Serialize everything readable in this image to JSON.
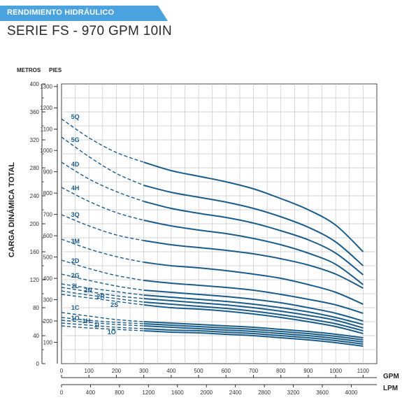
{
  "header": {
    "banner": "RENDIMIENTO HIDRÁULICO",
    "title": "SERIE FS - 970 GPM 10IN",
    "banner_color": "#4aa3df"
  },
  "chart_data": {
    "type": "line",
    "title": "SERIE FS - 970 GPM 10IN",
    "ylabel": "CARGA DINÁMICA TOTAL",
    "y_left_unit": "METROS",
    "y_right_unit": "PIES",
    "x_unit_gpm": "GPM",
    "x_unit_lpm": "LPM",
    "xlim": [
      0,
      1150
    ],
    "ylim": [
      0,
      400
    ],
    "metros_ticks": [
      "0",
      "40",
      "80",
      "120",
      "160",
      "200",
      "240",
      "280",
      "320",
      "360",
      "400"
    ],
    "pies_ticks": [
      "100",
      "200",
      "300",
      "400",
      "500",
      "600",
      "700",
      "800",
      "900",
      "1000",
      "1100",
      "1200",
      "1300"
    ],
    "gpm_ticks": [
      "0",
      "100",
      "200",
      "300",
      "400",
      "500",
      "600",
      "700",
      "800",
      "900",
      "1000",
      "1100"
    ],
    "lpm_ticks": [
      "0",
      "400",
      "800",
      "1200",
      "1600",
      "2000",
      "2400",
      "2800",
      "3200",
      "3600",
      "4000"
    ],
    "grid": true,
    "line_color": "#1a5c8a",
    "series": [
      {
        "name": "5Q",
        "lx": 50,
        "ly": 350,
        "points": [
          [
            0,
            350
          ],
          [
            100,
            323
          ],
          [
            200,
            302
          ],
          [
            300,
            288
          ],
          [
            400,
            276
          ],
          [
            500,
            268
          ],
          [
            600,
            260
          ],
          [
            700,
            250
          ],
          [
            800,
            236
          ],
          [
            900,
            220
          ],
          [
            1000,
            198
          ],
          [
            1100,
            160
          ]
        ]
      },
      {
        "name": "5G",
        "lx": 50,
        "ly": 317,
        "points": [
          [
            0,
            324
          ],
          [
            100,
            296
          ],
          [
            200,
            272
          ],
          [
            300,
            255
          ],
          [
            400,
            245
          ],
          [
            500,
            238
          ],
          [
            600,
            231
          ],
          [
            700,
            222
          ],
          [
            800,
            210
          ],
          [
            900,
            195
          ],
          [
            1000,
            174
          ],
          [
            1100,
            140
          ]
        ]
      },
      {
        "name": "4D",
        "lx": 50,
        "ly": 282,
        "points": [
          [
            0,
            288
          ],
          [
            100,
            264
          ],
          [
            200,
            246
          ],
          [
            300,
            232
          ],
          [
            400,
            222
          ],
          [
            500,
            215
          ],
          [
            600,
            209
          ],
          [
            700,
            201
          ],
          [
            800,
            190
          ],
          [
            900,
            177
          ],
          [
            1000,
            158
          ],
          [
            1100,
            127
          ]
        ]
      },
      {
        "name": "4H",
        "lx": 50,
        "ly": 248,
        "points": [
          [
            0,
            252
          ],
          [
            100,
            232
          ],
          [
            200,
            216
          ],
          [
            300,
            205
          ],
          [
            400,
            197
          ],
          [
            500,
            191
          ],
          [
            600,
            186
          ],
          [
            700,
            179
          ],
          [
            800,
            170
          ],
          [
            900,
            158
          ],
          [
            1000,
            142
          ],
          [
            1100,
            113
          ]
        ]
      },
      {
        "name": "3Q",
        "lx": 50,
        "ly": 210,
        "points": [
          [
            0,
            213
          ],
          [
            100,
            197
          ],
          [
            200,
            184
          ],
          [
            300,
            176
          ],
          [
            400,
            170
          ],
          [
            500,
            166
          ],
          [
            600,
            162
          ],
          [
            700,
            157
          ],
          [
            800,
            150
          ],
          [
            900,
            141
          ],
          [
            1000,
            128
          ],
          [
            1100,
            108
          ]
        ]
      },
      {
        "name": "3M",
        "lx": 50,
        "ly": 172,
        "points": [
          [
            0,
            178
          ],
          [
            100,
            164
          ],
          [
            200,
            153
          ],
          [
            300,
            145
          ],
          [
            400,
            140
          ],
          [
            500,
            137
          ],
          [
            600,
            133
          ],
          [
            700,
            128
          ],
          [
            800,
            122
          ],
          [
            900,
            113
          ],
          [
            1000,
            102
          ],
          [
            1100,
            85
          ]
        ]
      },
      {
        "name": "2D",
        "lx": 50,
        "ly": 144,
        "points": [
          [
            0,
            148
          ],
          [
            100,
            136
          ],
          [
            200,
            126
          ],
          [
            300,
            119
          ],
          [
            400,
            115
          ],
          [
            500,
            112
          ],
          [
            600,
            109
          ],
          [
            700,
            105
          ],
          [
            800,
            99
          ],
          [
            900,
            92
          ],
          [
            1000,
            84
          ],
          [
            1100,
            72
          ]
        ]
      },
      {
        "name": "2G",
        "lx": 50,
        "ly": 123,
        "points": [
          [
            0,
            128
          ],
          [
            100,
            119
          ],
          [
            200,
            111
          ],
          [
            300,
            105
          ],
          [
            400,
            102
          ],
          [
            500,
            99
          ],
          [
            600,
            96
          ],
          [
            700,
            92
          ],
          [
            800,
            87
          ],
          [
            900,
            80
          ],
          [
            1000,
            72
          ],
          [
            1100,
            61
          ]
        ]
      },
      {
        "name": "2L",
        "lx": 50,
        "ly": 108,
        "points": [
          [
            0,
            114
          ],
          [
            100,
            108
          ],
          [
            200,
            103
          ],
          [
            300,
            98
          ],
          [
            400,
            95
          ],
          [
            500,
            92
          ],
          [
            600,
            89
          ],
          [
            700,
            85
          ],
          [
            800,
            80
          ],
          [
            900,
            74
          ],
          [
            1000,
            66
          ],
          [
            1100,
            56
          ]
        ]
      },
      {
        "name": "2N",
        "lx": 97,
        "ly": 102,
        "points": [
          [
            0,
            109
          ],
          [
            100,
            103
          ],
          [
            200,
            97
          ],
          [
            300,
            93
          ],
          [
            400,
            90
          ],
          [
            500,
            87
          ],
          [
            600,
            84
          ],
          [
            700,
            80
          ],
          [
            800,
            75
          ],
          [
            900,
            69
          ],
          [
            1000,
            62
          ],
          [
            1100,
            51
          ]
        ]
      },
      {
        "name": "2R",
        "lx": 143,
        "ly": 93,
        "points": [
          [
            0,
            104
          ],
          [
            100,
            98
          ],
          [
            200,
            93
          ],
          [
            300,
            88
          ],
          [
            400,
            85
          ],
          [
            500,
            82
          ],
          [
            600,
            79
          ],
          [
            700,
            75
          ],
          [
            800,
            70
          ],
          [
            900,
            64
          ],
          [
            1000,
            57
          ],
          [
            1100,
            47
          ]
        ]
      },
      {
        "name": "2S",
        "lx": 193,
        "ly": 81,
        "points": [
          [
            0,
            99
          ],
          [
            100,
            94
          ],
          [
            200,
            89
          ],
          [
            300,
            84
          ],
          [
            400,
            80
          ],
          [
            500,
            78
          ],
          [
            600,
            75
          ],
          [
            700,
            71
          ],
          [
            800,
            66
          ],
          [
            900,
            60
          ],
          [
            1000,
            53
          ],
          [
            1100,
            43
          ]
        ]
      },
      {
        "name": "1C",
        "lx": 50,
        "ly": 77,
        "points": [
          [
            0,
            73
          ],
          [
            100,
            68
          ],
          [
            200,
            63
          ],
          [
            300,
            60
          ],
          [
            400,
            58
          ],
          [
            500,
            56
          ],
          [
            600,
            54
          ],
          [
            700,
            52
          ],
          [
            800,
            49
          ],
          [
            900,
            46
          ],
          [
            1000,
            42
          ],
          [
            1100,
            37
          ]
        ]
      },
      {
        "name": "1O",
        "lx": 50,
        "ly": 62,
        "points": [
          [
            0,
            66
          ],
          [
            100,
            62
          ],
          [
            200,
            59
          ],
          [
            300,
            57
          ],
          [
            400,
            55
          ],
          [
            500,
            53
          ],
          [
            600,
            51
          ],
          [
            700,
            49
          ],
          [
            800,
            46
          ],
          [
            900,
            43
          ],
          [
            1000,
            39
          ],
          [
            1100,
            34
          ]
        ]
      },
      {
        "name": "1H",
        "lx": 90,
        "ly": 58,
        "points": [
          [
            0,
            62
          ],
          [
            100,
            59
          ],
          [
            200,
            56
          ],
          [
            300,
            54
          ],
          [
            400,
            52
          ],
          [
            500,
            50
          ],
          [
            600,
            48
          ],
          [
            700,
            46
          ],
          [
            800,
            43
          ],
          [
            900,
            40
          ],
          [
            1000,
            36
          ],
          [
            1100,
            31
          ]
        ]
      },
      {
        "name": "1I",
        "lx": 128,
        "ly": 52,
        "points": [
          [
            0,
            58
          ],
          [
            100,
            55
          ],
          [
            200,
            52
          ],
          [
            300,
            50
          ],
          [
            400,
            48
          ],
          [
            500,
            47
          ],
          [
            600,
            45
          ],
          [
            700,
            43
          ],
          [
            800,
            40
          ],
          [
            900,
            37
          ],
          [
            1000,
            33
          ],
          [
            1100,
            28
          ]
        ]
      },
      {
        "name": "1O",
        "lx": 183,
        "ly": 42,
        "points": [
          [
            0,
            54
          ],
          [
            100,
            51
          ],
          [
            200,
            49
          ],
          [
            300,
            47
          ],
          [
            400,
            45
          ],
          [
            500,
            44
          ],
          [
            600,
            42
          ],
          [
            700,
            40
          ],
          [
            800,
            37
          ],
          [
            900,
            34
          ],
          [
            1000,
            30
          ],
          [
            1100,
            25
          ]
        ]
      }
    ]
  }
}
